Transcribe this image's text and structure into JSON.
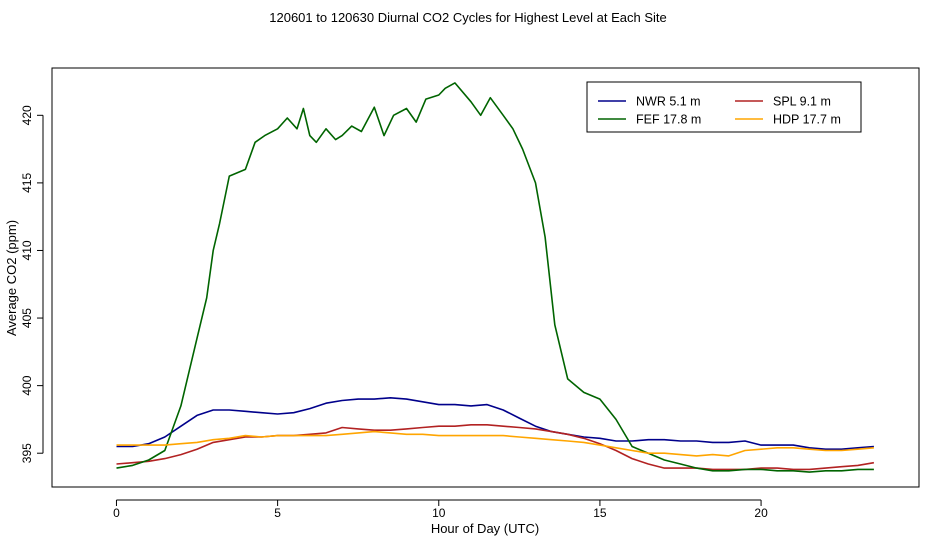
{
  "chart_data": {
    "type": "line",
    "title": "120601  to  120630 Diurnal CO2 Cycles for Highest Level at Each Site",
    "xlabel": "Hour of Day (UTC)",
    "ylabel": "Average CO2 (ppm)",
    "xlim": [
      -2,
      24.9
    ],
    "ylim": [
      392.5,
      423.5
    ],
    "xticks": [
      0,
      5,
      10,
      15,
      20
    ],
    "yticks": [
      395,
      400,
      405,
      410,
      415,
      420
    ],
    "grid": false,
    "legend_position": "top-right",
    "legend": [
      {
        "series": "NWR",
        "label": "NWR   5.1 m"
      },
      {
        "series": "SPL",
        "label": "SPL   9.1 m"
      },
      {
        "series": "FEF",
        "label": "FEF   17.8 m"
      },
      {
        "series": "HDP",
        "label": "HDP   17.7 m"
      }
    ],
    "series": [
      {
        "name": "NWR",
        "color": "#00008B",
        "x": [
          0,
          0.5,
          1,
          1.5,
          2,
          2.5,
          3,
          3.5,
          4,
          4.5,
          5,
          5.5,
          6,
          6.5,
          7,
          7.5,
          8,
          8.5,
          9,
          9.5,
          10,
          10.5,
          11,
          11.5,
          12,
          12.5,
          13,
          13.5,
          14,
          14.5,
          15,
          15.5,
          16,
          16.5,
          17,
          17.5,
          18,
          18.5,
          19,
          19.5,
          20,
          20.5,
          21,
          21.5,
          22,
          22.5,
          23,
          23.5
        ],
        "values": [
          395.5,
          395.5,
          395.7,
          396.2,
          397,
          397.8,
          398.2,
          398.2,
          398.1,
          398,
          397.9,
          398,
          398.3,
          398.7,
          398.9,
          399,
          399,
          399.1,
          399,
          398.8,
          398.6,
          398.6,
          398.5,
          398.6,
          398.2,
          397.6,
          397,
          396.6,
          396.4,
          396.2,
          396.1,
          395.9,
          395.9,
          396,
          396,
          395.9,
          395.9,
          395.8,
          395.8,
          395.9,
          395.6,
          395.6,
          395.6,
          395.4,
          395.3,
          395.3,
          395.4,
          395.5
        ]
      },
      {
        "name": "SPL",
        "color": "#B22222",
        "x": [
          0,
          0.5,
          1,
          1.5,
          2,
          2.5,
          3,
          3.5,
          4,
          4.5,
          5,
          5.5,
          6,
          6.5,
          7,
          7.5,
          8,
          8.5,
          9,
          9.5,
          10,
          10.5,
          11,
          11.5,
          12,
          12.5,
          13,
          13.5,
          14,
          14.5,
          15,
          15.5,
          16,
          16.5,
          17,
          17.5,
          18,
          18.5,
          19,
          19.5,
          20,
          20.5,
          21,
          21.5,
          22,
          22.5,
          23,
          23.5
        ],
        "values": [
          394.2,
          394.3,
          394.4,
          394.6,
          394.9,
          395.3,
          395.8,
          396,
          396.2,
          396.2,
          396.3,
          396.3,
          396.4,
          396.5,
          396.9,
          396.8,
          396.7,
          396.7,
          396.8,
          396.9,
          397,
          397,
          397.1,
          397.1,
          397,
          396.9,
          396.8,
          396.6,
          396.4,
          396.1,
          395.7,
          395.2,
          394.6,
          394.2,
          393.9,
          393.9,
          393.9,
          393.8,
          393.8,
          393.8,
          393.9,
          393.9,
          393.8,
          393.8,
          393.9,
          394,
          394.1,
          394.3
        ]
      },
      {
        "name": "FEF",
        "color": "#006400",
        "x": [
          0,
          0.5,
          1,
          1.5,
          2,
          2.5,
          2.8,
          3,
          3.2,
          3.5,
          4,
          4.3,
          4.6,
          5,
          5.3,
          5.6,
          5.8,
          6,
          6.2,
          6.5,
          6.8,
          7,
          7.3,
          7.6,
          8,
          8.3,
          8.6,
          9,
          9.3,
          9.6,
          10,
          10.2,
          10.5,
          11,
          11.3,
          11.6,
          12,
          12.3,
          12.6,
          13,
          13.3,
          13.6,
          14,
          14.5,
          15,
          15.5,
          16,
          16.5,
          17,
          17.5,
          18,
          18.5,
          19,
          19.5,
          20,
          20.5,
          21,
          21.5,
          22,
          22.5,
          23,
          23.5
        ],
        "values": [
          393.9,
          394.1,
          394.5,
          395.2,
          398.5,
          403.5,
          406.5,
          410,
          412,
          415.5,
          416,
          418,
          418.5,
          419,
          419.8,
          419,
          420.5,
          418.5,
          418,
          419,
          418.2,
          418.5,
          419.2,
          418.8,
          420.6,
          418.5,
          420,
          420.5,
          419.5,
          421.2,
          421.5,
          422,
          422.4,
          421,
          420,
          421.3,
          420,
          419,
          417.5,
          415,
          411,
          404.5,
          400.5,
          399.5,
          399,
          397.5,
          395.5,
          395,
          394.5,
          394.2,
          393.9,
          393.7,
          393.7,
          393.8,
          393.8,
          393.7,
          393.7,
          393.6,
          393.7,
          393.7,
          393.8,
          393.8
        ]
      },
      {
        "name": "HDP",
        "color": "#FFA500",
        "x": [
          0,
          0.5,
          1,
          1.5,
          2,
          2.5,
          3,
          3.5,
          4,
          4.5,
          5,
          5.5,
          6,
          6.5,
          7,
          7.5,
          8,
          8.5,
          9,
          9.5,
          10,
          10.5,
          11,
          11.5,
          12,
          12.5,
          13,
          13.5,
          14,
          14.5,
          15,
          15.5,
          16,
          16.5,
          17,
          17.5,
          18,
          18.5,
          19,
          19.5,
          20,
          20.5,
          21,
          21.5,
          22,
          22.5,
          23,
          23.5
        ],
        "values": [
          395.6,
          395.6,
          395.6,
          395.6,
          395.7,
          395.8,
          396,
          396.1,
          396.3,
          396.2,
          396.3,
          396.3,
          396.3,
          396.3,
          396.4,
          396.5,
          396.6,
          396.5,
          396.4,
          396.4,
          396.3,
          396.3,
          396.3,
          396.3,
          396.3,
          396.2,
          396.1,
          396,
          395.9,
          395.8,
          395.6,
          395.4,
          395.2,
          395,
          395,
          394.9,
          394.8,
          394.9,
          394.8,
          395.2,
          395.3,
          395.4,
          395.4,
          395.3,
          395.2,
          395.2,
          395.3,
          395.4
        ]
      }
    ]
  }
}
